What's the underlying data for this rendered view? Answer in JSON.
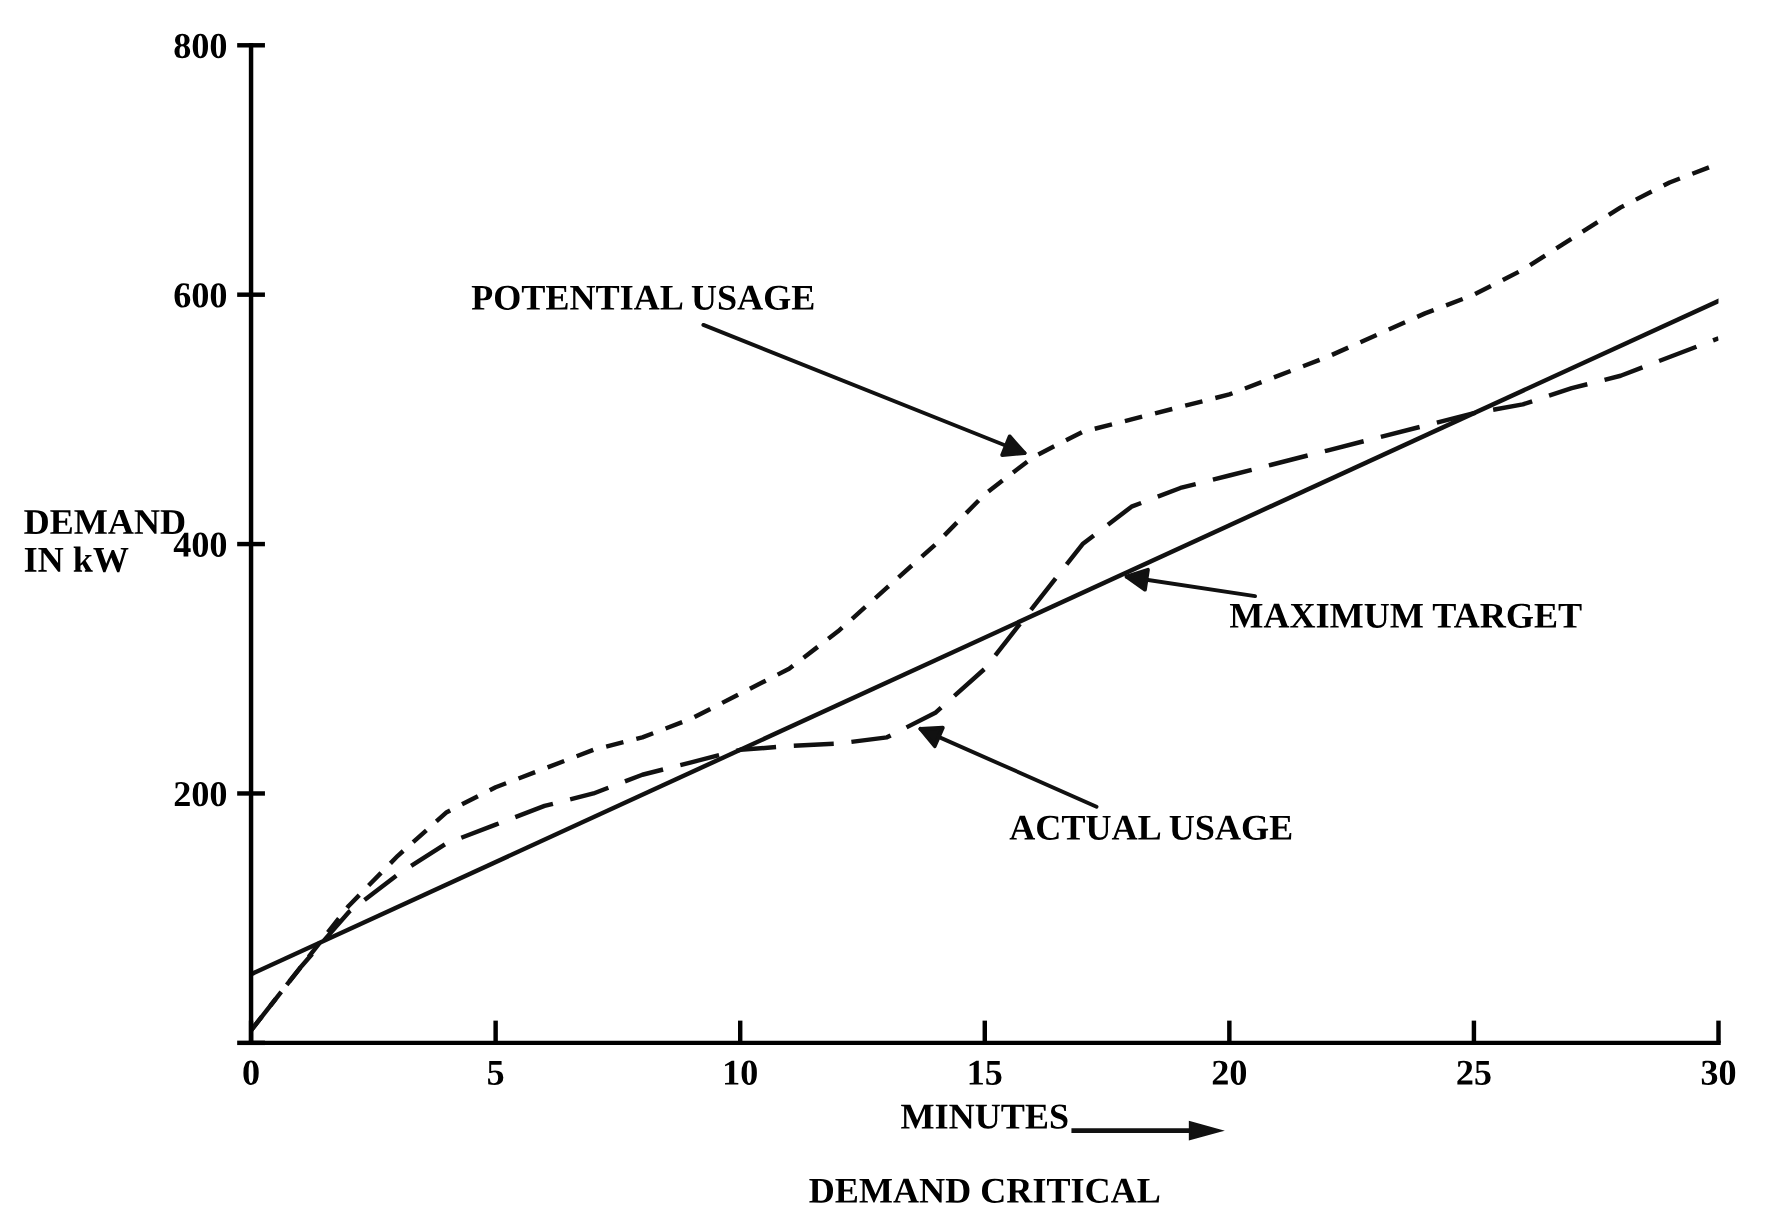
{
  "chart_data": {
    "type": "line",
    "xlabel": "MINUTES",
    "ylabel": "DEMAND\nIN kW",
    "xlim": [
      0,
      30
    ],
    "ylim": [
      0,
      800
    ],
    "xticks": [
      0,
      5,
      10,
      15,
      20,
      25,
      30
    ],
    "yticks": [
      {
        "value": 0,
        "label": null
      },
      200,
      400,
      600,
      800
    ],
    "grid": false,
    "legend": false,
    "marker": "none",
    "series": [
      {
        "color": "#111111",
        "line_style": "dotted",
        "x": [
          0,
          1,
          2,
          3,
          4,
          5,
          6,
          7,
          8,
          9,
          10,
          11,
          12,
          13,
          14,
          15,
          16,
          17,
          18,
          19,
          20,
          22,
          24,
          25,
          26,
          27,
          28,
          29,
          30
        ],
        "values": [
          10,
          60,
          110,
          150,
          185,
          205,
          220,
          235,
          245,
          260,
          280,
          300,
          330,
          365,
          400,
          440,
          470,
          490,
          500,
          510,
          520,
          550,
          585,
          600,
          620,
          645,
          670,
          690,
          705
        ]
      },
      {
        "color": "#111111",
        "line_style": "dashed",
        "x": [
          0,
          1,
          2,
          3,
          4,
          5,
          6,
          7,
          8,
          9,
          10,
          11,
          12,
          13,
          14,
          15,
          16,
          17,
          18,
          19,
          20,
          22,
          24,
          25,
          26,
          27,
          28,
          29,
          30
        ],
        "values": [
          10,
          60,
          105,
          135,
          160,
          175,
          190,
          200,
          215,
          225,
          235,
          238,
          240,
          245,
          265,
          300,
          350,
          400,
          430,
          445,
          455,
          475,
          495,
          505,
          512,
          525,
          535,
          550,
          565
        ]
      },
      {
        "color": "#111111",
        "line_style": "solid",
        "x": [
          0,
          30
        ],
        "values": [
          55,
          595
        ]
      }
    ],
    "annotations": [
      {
        "text": "POTENTIAL USAGE",
        "x": 16,
        "y": 470
      },
      {
        "text": "ACTUAL USAGE",
        "x": 13.5,
        "y": 255
      },
      {
        "text": "MAXIMUM TARGET",
        "x": 17.7,
        "y": 375
      },
      "DEMAND CRITICAL"
    ]
  }
}
